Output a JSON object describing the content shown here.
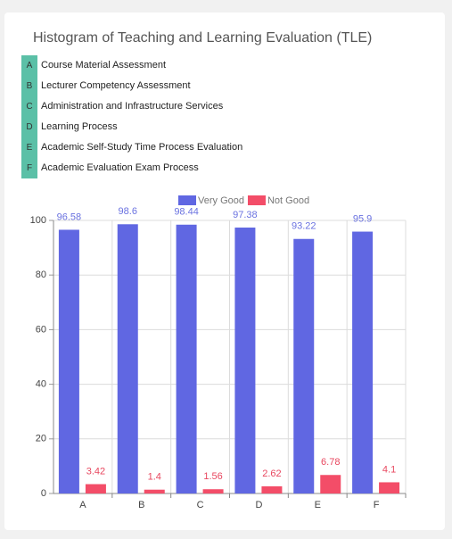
{
  "header": {
    "title": "Histogram of Teaching and Learning Evaluation (TLE)",
    "items": [
      {
        "key": "A",
        "label": "Course Material Assessment"
      },
      {
        "key": "B",
        "label": "Lecturer Competency Assessment"
      },
      {
        "key": "C",
        "label": "Administration and Infrastructure Services"
      },
      {
        "key": "D",
        "label": "Learning Process"
      },
      {
        "key": "E",
        "label": "Academic Self-Study Time Process Evaluation"
      },
      {
        "key": "F",
        "label": "Academic Evaluation Exam Process"
      }
    ]
  },
  "chart_data": {
    "type": "bar",
    "categories": [
      "A",
      "B",
      "C",
      "D",
      "E",
      "F"
    ],
    "series": [
      {
        "name": "Very Good",
        "color": "#6067e2",
        "label_color": "#6a72e0",
        "values": [
          96.58,
          98.6,
          98.44,
          97.38,
          93.22,
          95.9
        ]
      },
      {
        "name": "Not Good",
        "color": "#f34d68",
        "label_color": "#e8475f",
        "values": [
          3.42,
          1.4,
          1.56,
          2.62,
          6.78,
          4.1
        ]
      }
    ],
    "ylim": [
      0,
      100
    ],
    "yticks": [
      0,
      20,
      40,
      60,
      80,
      100
    ],
    "grid": true
  }
}
